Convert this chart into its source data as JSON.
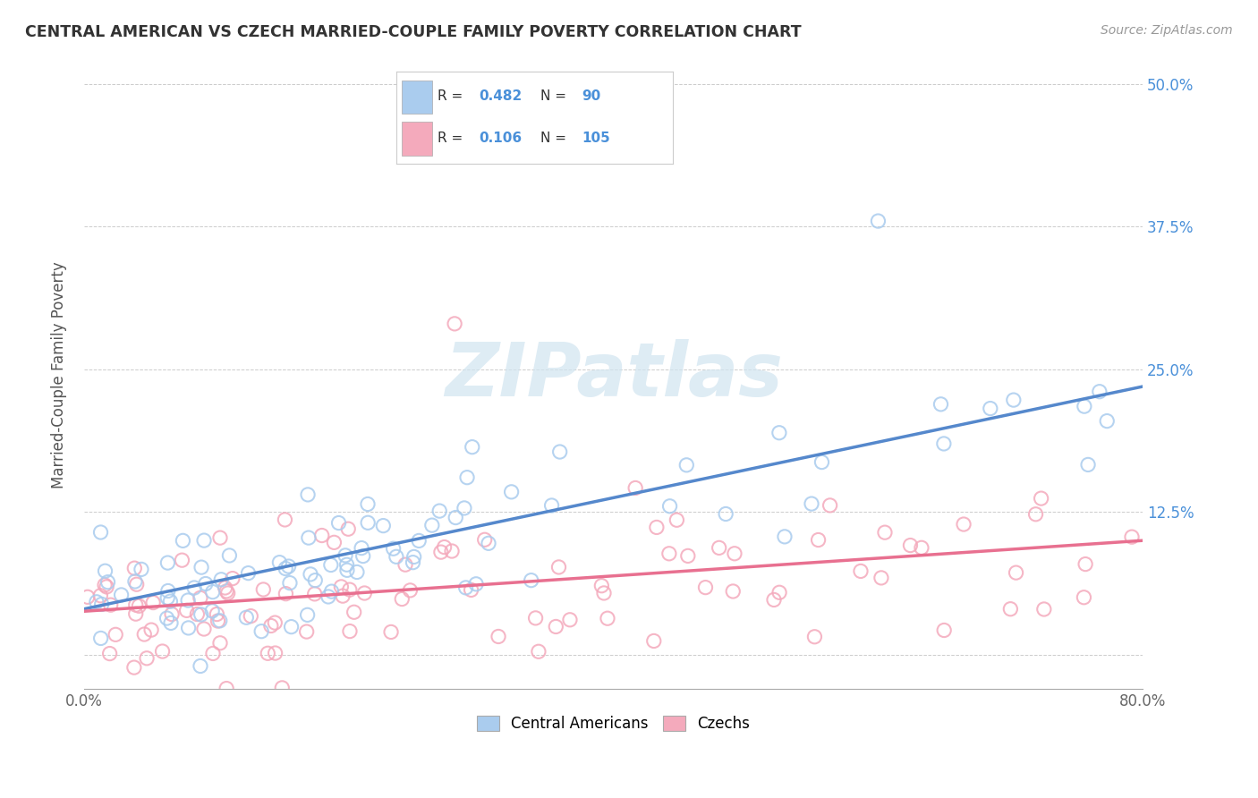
{
  "title": "CENTRAL AMERICAN VS CZECH MARRIED-COUPLE FAMILY POVERTY CORRELATION CHART",
  "source": "Source: ZipAtlas.com",
  "ylabel": "Married-Couple Family Poverty",
  "legend_label1": "Central Americans",
  "legend_label2": "Czechs",
  "r1": "0.482",
  "n1": "90",
  "r2": "0.106",
  "n2": "105",
  "color_blue": "#AACCEE",
  "color_pink": "#F4AABC",
  "color_blue_edge": "#6699CC",
  "color_pink_edge": "#E87090",
  "color_blue_text": "#4A90D9",
  "color_line_blue": "#5588CC",
  "color_line_pink": "#E87090",
  "watermark_color": "#D0E4F0",
  "xlim": [
    0.0,
    0.8
  ],
  "ylim": [
    -0.03,
    0.52
  ],
  "blue_line_x": [
    0.0,
    0.8
  ],
  "blue_line_y": [
    0.04,
    0.235
  ],
  "pink_line_x": [
    0.0,
    0.8
  ],
  "pink_line_y": [
    0.038,
    0.1
  ],
  "grid_color": "#CCCCCC",
  "background_color": "#FFFFFF",
  "xticks": [
    0.0,
    0.2,
    0.4,
    0.6,
    0.8
  ],
  "xticklabels": [
    "0.0%",
    "",
    "",
    "",
    "80.0%"
  ],
  "ytick_vals": [
    0.0,
    0.125,
    0.25,
    0.375,
    0.5
  ],
  "ytick_labels": [
    "",
    "12.5%",
    "25.0%",
    "37.5%",
    "50.0%"
  ]
}
